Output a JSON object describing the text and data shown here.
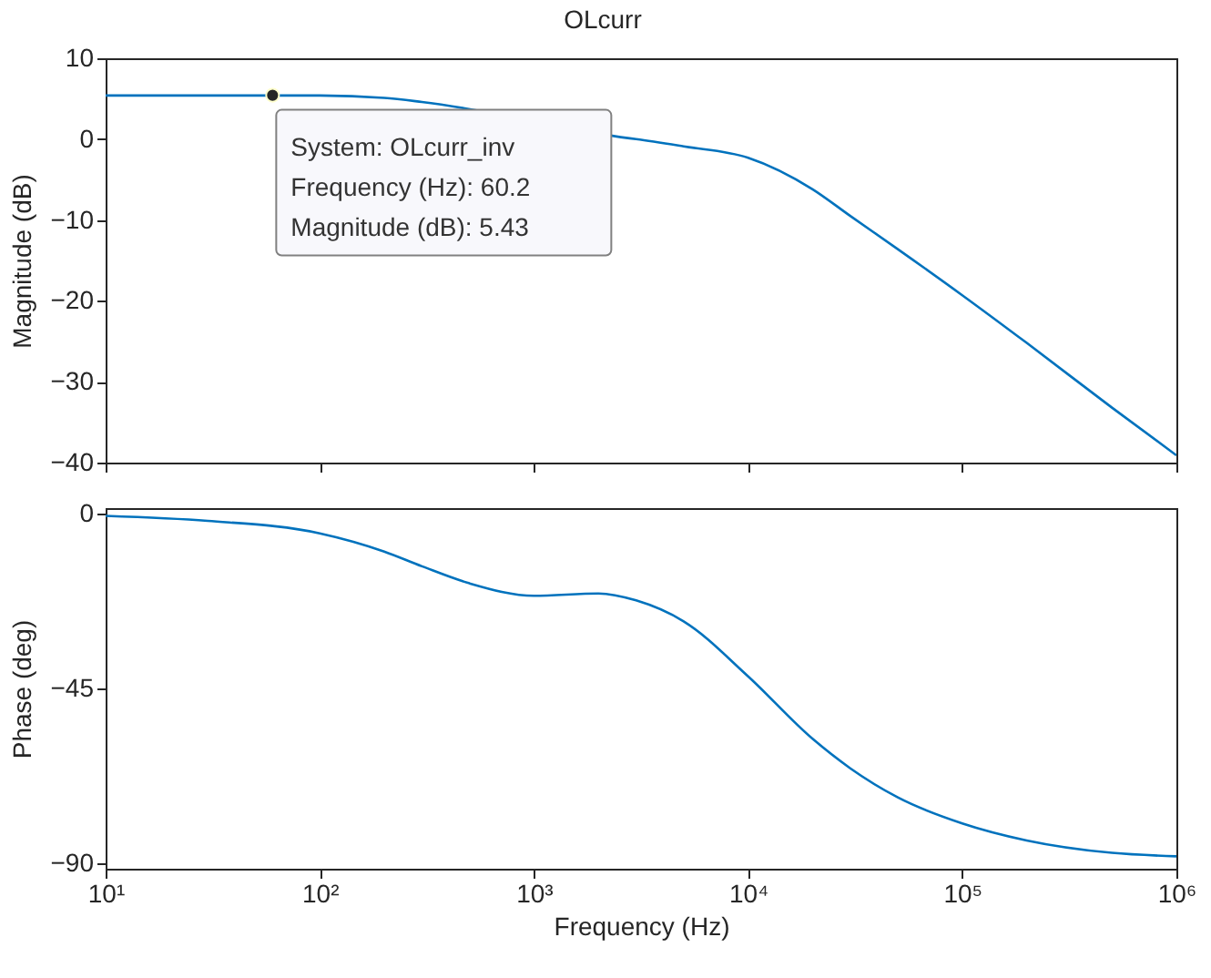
{
  "chart_data": [
    {
      "type": "line",
      "title": "OLcurr",
      "ylabel": "Magnitude (dB)",
      "tick_labels": "y",
      "log": "x",
      "grid": false,
      "marker": "none",
      "xlim": [
        10,
        1000000
      ],
      "xticks": [
        10,
        100,
        1000,
        10000,
        100000,
        1000000
      ],
      "ylim": [
        -40,
        10
      ],
      "yticks": [
        -40,
        -30,
        -20,
        -10,
        0,
        10
      ],
      "series": [
        {
          "color": "#0072bd",
          "x": [
            10,
            60.2,
            100,
            200,
            300,
            500,
            1000,
            2000,
            2800,
            3000,
            5000,
            10000,
            20000,
            30000,
            50000,
            100000,
            200000,
            500000,
            1000000
          ],
          "values": [
            5.4,
            5.4,
            5.4,
            5.1,
            4.6,
            null,
            null,
            null,
            0.1,
            0.0,
            -0.9,
            -2.3,
            -6.2,
            -9.5,
            -13.6,
            -19.3,
            -25.2,
            -33.2,
            -39.1
          ]
        }
      ],
      "annotations": [
        {
          "text": "System: OLcurr_inv\nFrequency (Hz): 60.2\nMagnitude (dB): 5.43",
          "x": 60.2,
          "y": 5.43
        }
      ]
    },
    {
      "type": "line",
      "xlabel": "Frequency  (Hz)",
      "ylabel": "Phase (deg)",
      "log": "x",
      "grid": false,
      "marker": "none",
      "xlim": [
        10,
        1000000
      ],
      "xticks": [
        {
          "value": 10,
          "label": "10¹"
        },
        {
          "value": 100,
          "label": "10²"
        },
        {
          "value": 1000,
          "label": "10³"
        },
        {
          "value": 10000,
          "label": "10⁴"
        },
        {
          "value": 100000,
          "label": "10⁵"
        },
        {
          "value": 1000000,
          "label": "10⁶"
        }
      ],
      "ylim": [
        -91.5,
        1.5
      ],
      "yticks": [
        -90,
        -45,
        0
      ],
      "series": [
        {
          "color": "#0072bd",
          "x": [
            10,
            30,
            100,
            200,
            300,
            500,
            1000,
            2000,
            3000,
            5000,
            10000,
            20000,
            30000,
            50000,
            100000,
            200000,
            500000,
            1000000
          ],
          "values": [
            -0.5,
            -1.8,
            -5,
            -9.7,
            -13.5,
            -17.9,
            -21.1,
            -20.5,
            -22.3,
            -27.7,
            -41.9,
            -58,
            -65.6,
            -73.1,
            -79.8,
            -84.2,
            -87.4,
            -88.3
          ]
        }
      ]
    }
  ]
}
